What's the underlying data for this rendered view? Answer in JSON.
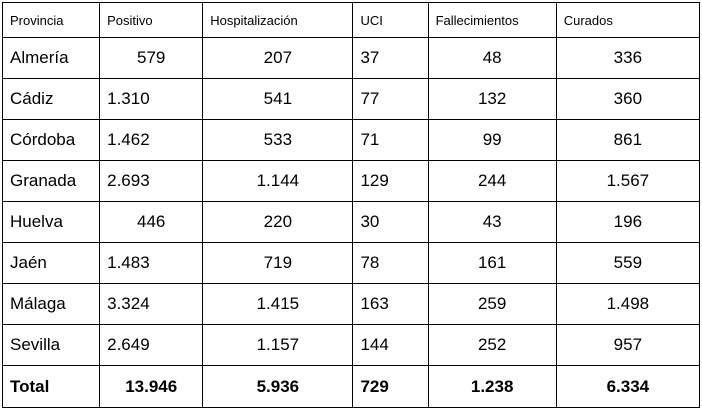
{
  "table": {
    "headers": [
      "Provincia",
      "Positivo",
      "Hospitalización",
      "UCI",
      "Fallecimientos",
      "Curados"
    ],
    "rows": [
      [
        "Almería",
        "579",
        "207",
        "37",
        "48",
        "336"
      ],
      [
        "Cádiz",
        "1.310",
        "541",
        "77",
        "132",
        "360"
      ],
      [
        "Córdoba",
        "1.462",
        "533",
        "71",
        "99",
        "861"
      ],
      [
        "Granada",
        "2.693",
        "1.144",
        "129",
        "244",
        "1.567"
      ],
      [
        "Huelva",
        "446",
        "220",
        "30",
        "43",
        "196"
      ],
      [
        "Jaén",
        "1.483",
        "719",
        "78",
        "161",
        "559"
      ],
      [
        "Málaga",
        "3.324",
        "1.415",
        "163",
        "259",
        "1.498"
      ],
      [
        "Sevilla",
        "2.649",
        "1.157",
        "144",
        "252",
        "957"
      ]
    ],
    "total": [
      "Total",
      "13.946",
      "5.936",
      "729",
      "1.238",
      "6.334"
    ]
  }
}
